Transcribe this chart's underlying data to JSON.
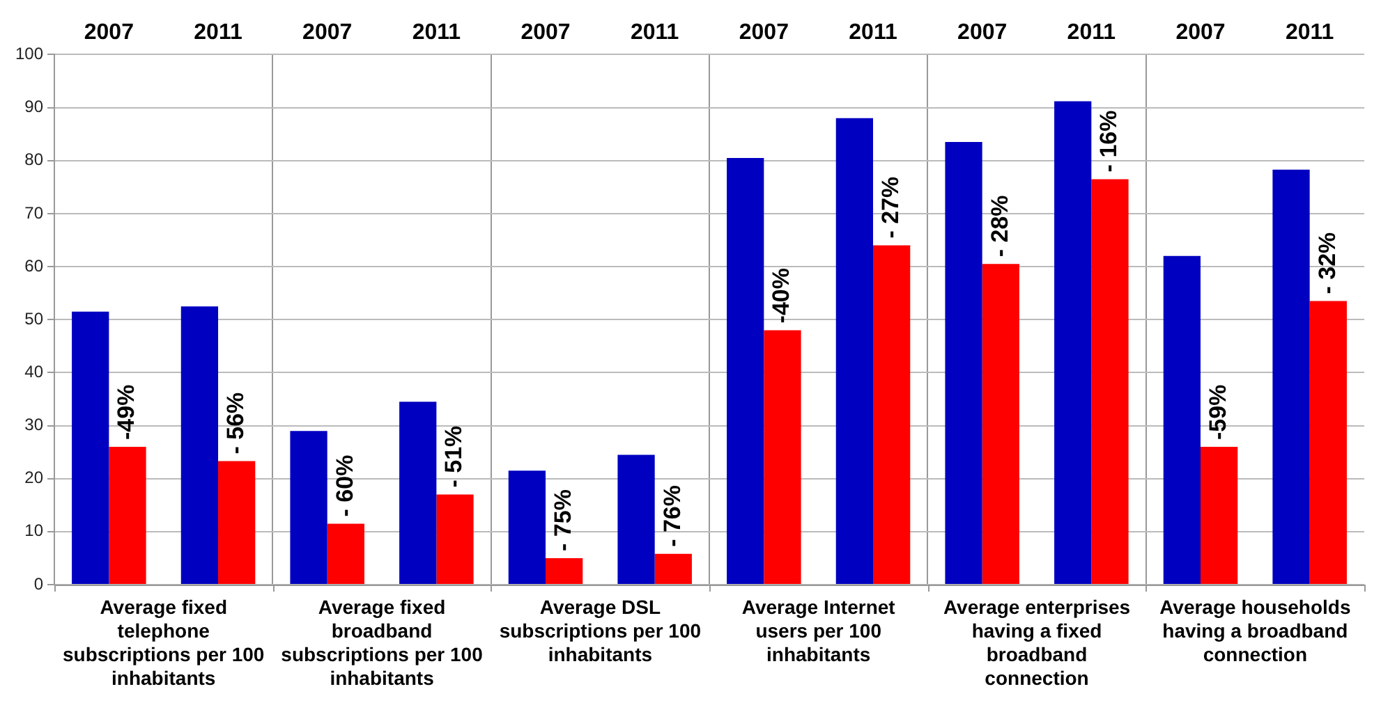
{
  "chart_data": {
    "type": "bar",
    "categories": [
      "2007",
      "2011",
      "2007",
      "2011",
      "2007",
      "2011",
      "2007",
      "2011",
      "2007",
      "2011",
      "2007",
      "2011"
    ],
    "series": [
      {
        "color": "#0000c0",
        "values": [
          51.5,
          52.5,
          29,
          34.5,
          21.5,
          24.5,
          80.5,
          88,
          83.5,
          91.2,
          62,
          78.3
        ]
      },
      {
        "color": "#ff0000",
        "values": [
          26,
          23.3,
          11.5,
          17,
          5,
          5.8,
          48,
          64,
          60.5,
          76.5,
          26,
          53.5
        ]
      }
    ],
    "ylim": [
      0,
      100
    ],
    "yticks": [
      0,
      10,
      20,
      30,
      40,
      50,
      60,
      70,
      80,
      90,
      100
    ],
    "grid": true,
    "legend": false,
    "annotations": [
      "Average fixed telephone subscriptions per 100 inhabitants",
      "Average fixed broadband subscriptions per 100 inhabitants",
      "Average DSL subscriptions per 100 inhabitants",
      "Average Internet users per 100 inhabitants",
      "Average enterprises having a fixed broadband connection",
      "Average households having a broadband connection",
      "-49%",
      "- 56%",
      "- 60%",
      "- 51%",
      "- 75%",
      "- 76%",
      "-40%",
      "- 27%",
      "- 28%",
      "- 16%",
      "-59%",
      "- 32%"
    ]
  }
}
